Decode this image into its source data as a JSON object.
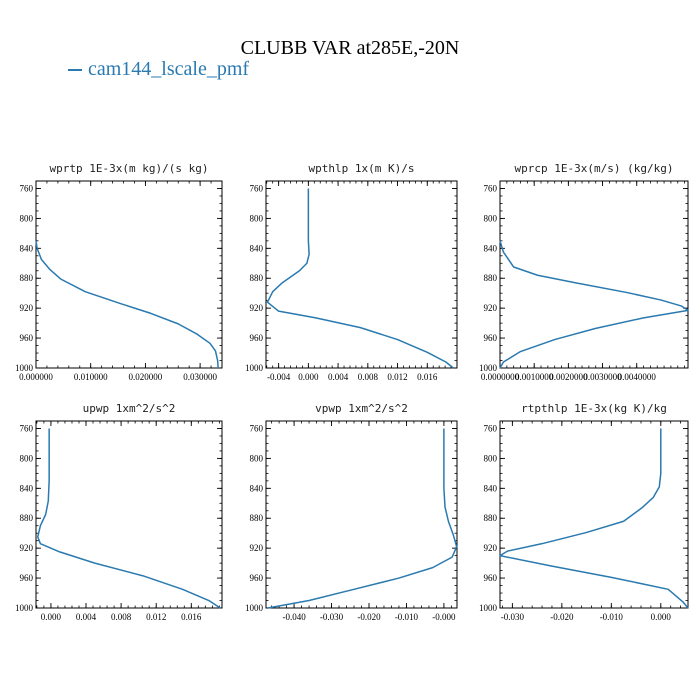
{
  "title": "CLUBB VAR at285E,-20N",
  "legend": {
    "label": "cam144_lscale_pmf",
    "color": "#2a7ab0"
  },
  "line_color": "#2a7ab0",
  "chart_data": [
    {
      "type": "line",
      "title": "wprtp  1E-3x(m kg)/(s kg)",
      "xlim": [
        0.0,
        0.034
      ],
      "ylim": [
        1000,
        750
      ],
      "x_ticks": [
        0.0,
        0.01,
        0.02,
        0.03
      ],
      "x_tick_labels": [
        "0.000000",
        "0.010000",
        "0.020000",
        "0.030000"
      ],
      "y_ticks": [
        760,
        800,
        840,
        880,
        920,
        960,
        1000
      ],
      "series": [
        {
          "x": [
            0.0,
            0.0002,
            0.001,
            0.0025,
            0.0045,
            0.009,
            0.0155,
            0.021,
            0.026,
            0.0295,
            0.0318,
            0.0328,
            0.0332,
            0.0333
          ],
          "y": [
            830,
            840,
            855,
            868,
            881,
            898,
            914,
            927,
            941,
            955,
            967,
            977,
            990,
            1000
          ]
        }
      ]
    },
    {
      "type": "line",
      "title": "wpthlp  1x(m K)/s",
      "xlim": [
        -0.0057,
        0.02
      ],
      "ylim": [
        1000,
        750
      ],
      "x_ticks": [
        -0.004,
        0.0,
        0.004,
        0.008,
        0.012,
        0.016
      ],
      "x_tick_labels": [
        "-0.004",
        "0.000",
        "0.004",
        "0.008",
        "0.012",
        "0.016"
      ],
      "y_ticks": [
        760,
        800,
        840,
        880,
        920,
        960,
        1000
      ],
      "series": [
        {
          "x": [
            0.0,
            0.0,
            0.0001,
            -0.0002,
            -0.0012,
            -0.0035,
            -0.0048,
            -0.0055,
            -0.004,
            0.001,
            0.007,
            0.012,
            0.016,
            0.0185,
            0.0195
          ],
          "y": [
            760,
            830,
            848,
            860,
            870,
            886,
            898,
            912,
            924,
            933,
            946,
            962,
            979,
            992,
            1000
          ]
        }
      ]
    },
    {
      "type": "line",
      "title": "wprcp  1E-3x(m/s) (kg/kg)",
      "xlim": [
        0.0,
        0.0055
      ],
      "ylim": [
        1000,
        750
      ],
      "x_ticks": [
        0.0,
        0.001,
        0.002,
        0.003,
        0.004
      ],
      "x_tick_labels": [
        "0.0000000",
        "0.0010000",
        "0.0020000",
        "0.0030000",
        "0.0040000"
      ],
      "y_ticks": [
        760,
        800,
        840,
        880,
        920,
        960,
        1000
      ],
      "series": [
        {
          "x": [
            0.0,
            0.0001,
            0.0004,
            0.0011,
            0.0022,
            0.0037,
            0.0047,
            0.0053,
            0.0055,
            0.0042,
            0.0028,
            0.0016,
            0.0006,
            0.0001,
            0.0
          ],
          "y": [
            830,
            845,
            865,
            876,
            886,
            899,
            909,
            917,
            923,
            933,
            947,
            962,
            978,
            992,
            1000
          ]
        }
      ]
    },
    {
      "type": "line",
      "title": "upwp  1xm^2/s^2",
      "xlim": [
        -0.0017,
        0.0195
      ],
      "ylim": [
        1000,
        750
      ],
      "x_ticks": [
        0.0,
        0.004,
        0.008,
        0.012,
        0.016
      ],
      "x_tick_labels": [
        "0.000",
        "0.004",
        "0.008",
        "0.012",
        "0.016"
      ],
      "y_ticks": [
        760,
        800,
        840,
        880,
        920,
        960,
        1000
      ],
      "series": [
        {
          "x": [
            -0.0002,
            -0.0002,
            -0.0003,
            -0.0006,
            -0.0012,
            -0.0015,
            -0.0012,
            0.001,
            0.005,
            0.0105,
            0.015,
            0.018,
            0.0193
          ],
          "y": [
            760,
            830,
            857,
            875,
            890,
            905,
            914,
            925,
            940,
            957,
            975,
            990,
            1000
          ]
        }
      ]
    },
    {
      "type": "line",
      "title": "vpwp  1xm^2/s^2",
      "xlim": [
        -0.0475,
        0.0035
      ],
      "ylim": [
        1000,
        750
      ],
      "x_ticks": [
        -0.04,
        -0.03,
        -0.02,
        -0.01,
        0.0
      ],
      "x_tick_labels": [
        "-0.040",
        "-0.030",
        "-0.020",
        "-0.010",
        "-0.000"
      ],
      "y_ticks": [
        760,
        800,
        840,
        880,
        920,
        960,
        1000
      ],
      "series": [
        {
          "x": [
            0.0,
            0.0,
            0.0003,
            0.0012,
            0.0025,
            0.0034,
            0.0022,
            -0.003,
            -0.012,
            -0.024,
            -0.036,
            -0.047
          ],
          "y": [
            760,
            840,
            865,
            884,
            902,
            918,
            932,
            946,
            960,
            975,
            990,
            1000
          ]
        }
      ]
    },
    {
      "type": "line",
      "title": "rtpthlp  1E-3x(kg K)/kg",
      "xlim": [
        -0.0325,
        0.0055
      ],
      "ylim": [
        1000,
        750
      ],
      "x_ticks": [
        -0.03,
        -0.02,
        -0.01,
        0.0
      ],
      "x_tick_labels": [
        "-0.030",
        "-0.020",
        "-0.010",
        "0.000"
      ],
      "y_ticks": [
        760,
        800,
        840,
        880,
        920,
        960,
        1000
      ],
      "series": [
        {
          "x": [
            0.0,
            0.0,
            -0.0003,
            -0.0015,
            -0.0038,
            -0.0075,
            -0.015,
            -0.024,
            -0.031,
            -0.0325,
            -0.022,
            -0.01,
            0.0015,
            0.0045,
            0.0055
          ],
          "y": [
            760,
            820,
            838,
            852,
            866,
            884,
            899,
            914,
            924,
            930,
            944,
            959,
            975,
            992,
            1000
          ]
        }
      ]
    }
  ]
}
